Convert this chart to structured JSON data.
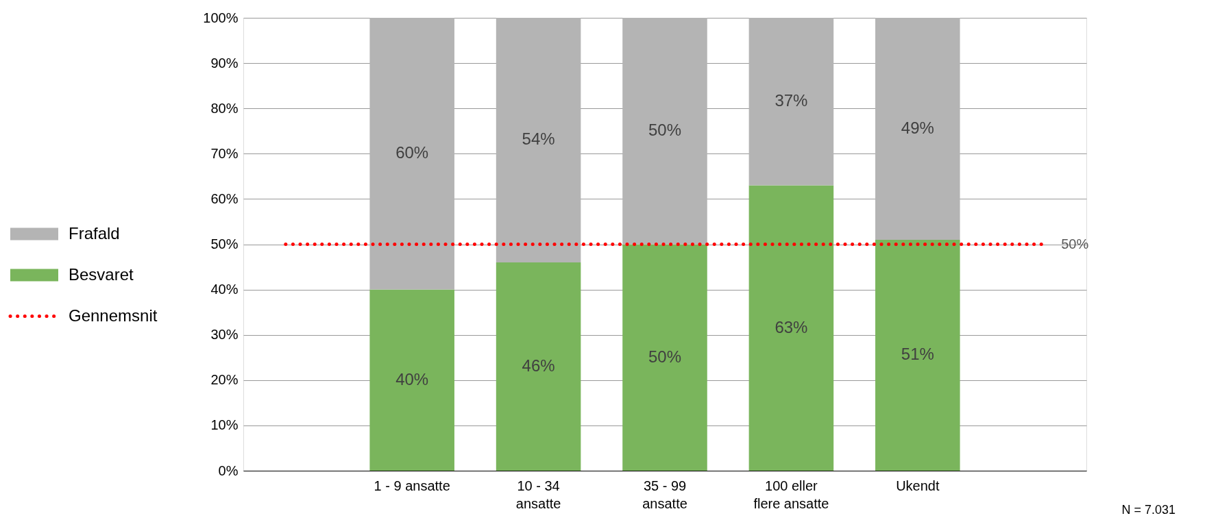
{
  "chart_data": {
    "type": "bar",
    "stacked": true,
    "categories": [
      null,
      "1 - 9 ansatte",
      "10 - 34 ansatte",
      "35 - 99 ansatte",
      "100 eller flere ansatte",
      "Ukendt",
      null
    ],
    "series": [
      {
        "name": "Besvaret",
        "color": "#7ab55c",
        "values": [
          null,
          40,
          46,
          50,
          63,
          51,
          null
        ],
        "value_labels": [
          null,
          "40%",
          "46%",
          "50%",
          "63%",
          "51%",
          null
        ]
      },
      {
        "name": "Frafald",
        "color": "#b4b4b4",
        "values": [
          null,
          60,
          54,
          50,
          37,
          49,
          null
        ],
        "value_labels": [
          null,
          "60%",
          "54%",
          "50%",
          "37%",
          "49%",
          null
        ]
      },
      {
        "name": "Gennemsnit",
        "type": "line",
        "color": "#ff0000",
        "line_style": "dotted",
        "marker": "none",
        "values": [
          50,
          50,
          50,
          50,
          50,
          50,
          50
        ],
        "value_labels": [
          null,
          null,
          null,
          null,
          null,
          null,
          "50%"
        ]
      }
    ],
    "ylim": [
      0,
      100
    ],
    "yticks": [
      {
        "value": 0,
        "label": "0%"
      },
      {
        "value": 10,
        "label": "10%"
      },
      {
        "value": 20,
        "label": "20%"
      },
      {
        "value": 30,
        "label": "30%"
      },
      {
        "value": 40,
        "label": "40%"
      },
      {
        "value": 50,
        "label": "50%"
      },
      {
        "value": 60,
        "label": "60%"
      },
      {
        "value": 70,
        "label": "70%"
      },
      {
        "value": 80,
        "label": "80%"
      },
      {
        "value": 90,
        "label": "90%"
      },
      {
        "value": 100,
        "label": "100%"
      }
    ],
    "grid": "y",
    "legend": "left",
    "annotations": [
      "N = 7.031"
    ]
  }
}
